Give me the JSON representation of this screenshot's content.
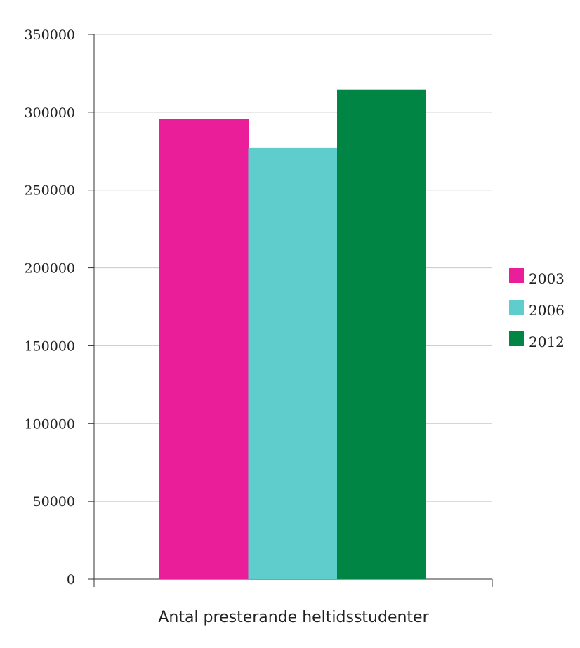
{
  "chart_data": {
    "type": "bar",
    "categories": [
      "Antal presterande heltidsstudenter"
    ],
    "series": [
      {
        "name": "2003",
        "values": [
          295500
        ],
        "color": "#e91e98"
      },
      {
        "name": "2006",
        "values": [
          277000
        ],
        "color": "#5ecdcb"
      },
      {
        "name": "2012",
        "values": [
          314500
        ],
        "color": "#018544"
      }
    ],
    "title": "",
    "xlabel": "Antal presterande heltidsstudenter",
    "ylabel": "",
    "ylim": [
      0,
      350000
    ],
    "yticks": [
      "0",
      "50000",
      "100000",
      "150000",
      "200000",
      "250000",
      "300000",
      "350000"
    ],
    "grid": true,
    "legend_position": "right"
  }
}
